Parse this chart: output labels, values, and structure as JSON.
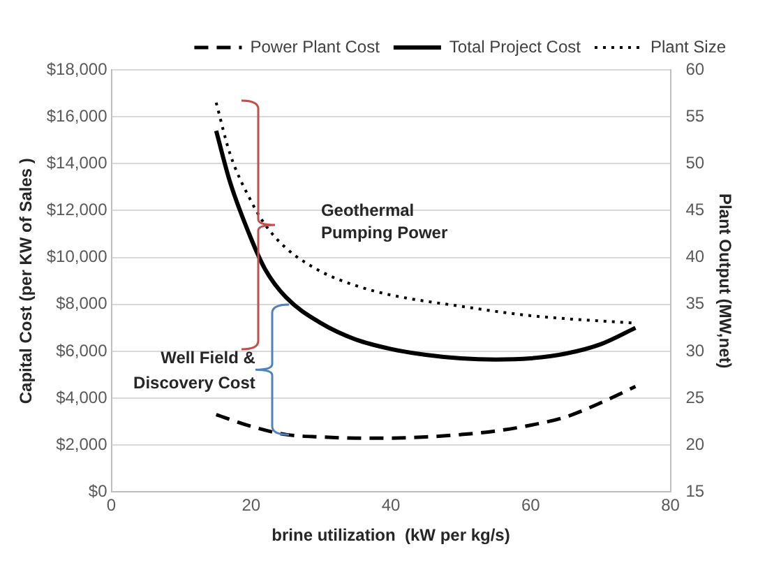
{
  "chart_data": {
    "type": "line",
    "xlabel": "brine utilization  (kW per kg/s)",
    "ylabel": "Capital Cost (per KW of Sales )",
    "y2label": "Plant Output (MW,net)",
    "xlim": [
      0,
      80
    ],
    "xticks": [
      0,
      20,
      40,
      60,
      80
    ],
    "ylim": [
      0,
      18000
    ],
    "yticks": [
      {
        "value": 0,
        "label": "$0"
      },
      {
        "value": 2000,
        "label": "$2,000"
      },
      {
        "value": 4000,
        "label": "$4,000"
      },
      {
        "value": 6000,
        "label": "$6,000"
      },
      {
        "value": 8000,
        "label": "$8,000"
      },
      {
        "value": 10000,
        "label": "$10,000"
      },
      {
        "value": 12000,
        "label": "$12,000"
      },
      {
        "value": 14000,
        "label": "$14,000"
      },
      {
        "value": 16000,
        "label": "$16,000"
      },
      {
        "value": 18000,
        "label": "$18,000"
      }
    ],
    "y2lim": [
      15,
      60
    ],
    "y2ticks": [
      15,
      20,
      25,
      30,
      35,
      40,
      45,
      50,
      55,
      60
    ],
    "grid": "y",
    "legend": "top right",
    "marker": "none",
    "series": [
      {
        "name": "Power Plant Cost",
        "color": "#000000",
        "line_style": "dashed",
        "x": [
          15,
          20,
          25,
          30,
          35,
          40,
          45,
          50,
          55,
          60,
          65,
          70,
          75
        ],
        "values": [
          3300,
          2800,
          2450,
          2350,
          2300,
          2300,
          2350,
          2450,
          2600,
          2850,
          3200,
          3800,
          4500
        ]
      },
      {
        "name": "Total Project Cost",
        "color": "#000000",
        "line_style": "solid",
        "x": [
          15,
          17,
          20,
          22,
          25,
          30,
          35,
          40,
          45,
          50,
          55,
          60,
          65,
          70,
          75
        ],
        "values": [
          15400,
          13200,
          10800,
          9500,
          8300,
          7200,
          6500,
          6100,
          5850,
          5700,
          5650,
          5700,
          5900,
          6300,
          7000
        ]
      },
      {
        "name": "Plant Size",
        "color": "#000000",
        "line_style": "dotted",
        "axis": "y2",
        "x": [
          15,
          17,
          20,
          22,
          25,
          30,
          35,
          40,
          50,
          60,
          75
        ],
        "values": [
          56.5,
          51,
          46,
          43.5,
          41,
          38.5,
          37,
          36,
          34.8,
          33.8,
          33
        ]
      }
    ],
    "annotations": [
      "Geothermal Pumping Power",
      "Well Field & Discovery Cost"
    ]
  }
}
